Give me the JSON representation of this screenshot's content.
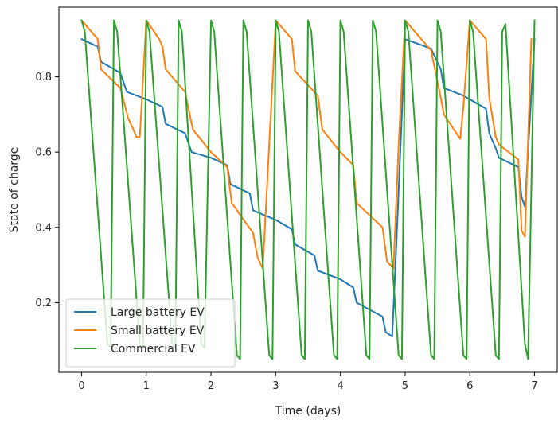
{
  "chart_data": {
    "type": "line",
    "title": "",
    "xlabel": "Time (days)",
    "ylabel": "State of charge",
    "xlim": [
      -0.35,
      7.35
    ],
    "ylim": [
      0.015,
      0.985
    ],
    "xticks": [
      0,
      1,
      2,
      3,
      4,
      5,
      6,
      7
    ],
    "xtick_labels": [
      "0",
      "1",
      "2",
      "3",
      "4",
      "5",
      "6",
      "7"
    ],
    "yticks": [
      0.2,
      0.4,
      0.6,
      0.8
    ],
    "ytick_labels": [
      "0.2",
      "0.4",
      "0.6",
      "0.8"
    ],
    "grid": false,
    "legend_position": "lower-left",
    "series": [
      {
        "name": "Large battery EV",
        "color": "#1f77b4",
        "x": [
          0,
          0.25,
          0.3,
          0.6,
          0.7,
          1.0,
          1.25,
          1.3,
          1.6,
          1.7,
          2.0,
          2.25,
          2.3,
          2.6,
          2.65,
          3.0,
          3.25,
          3.3,
          3.6,
          3.65,
          4.0,
          4.2,
          4.25,
          4.65,
          4.7,
          4.8,
          4.85,
          5.0,
          5.4,
          5.55,
          5.6,
          5.9,
          6.25,
          6.3,
          6.4,
          6.45,
          6.75,
          6.8,
          6.85,
          7.0
        ],
        "y": [
          0.9,
          0.88,
          0.84,
          0.81,
          0.76,
          0.74,
          0.72,
          0.675,
          0.65,
          0.6,
          0.585,
          0.565,
          0.515,
          0.49,
          0.445,
          0.42,
          0.395,
          0.355,
          0.325,
          0.285,
          0.262,
          0.24,
          0.2,
          0.163,
          0.122,
          0.11,
          0.3,
          0.9,
          0.875,
          0.82,
          0.77,
          0.75,
          0.715,
          0.65,
          0.61,
          0.585,
          0.56,
          0.48,
          0.455,
          0.9
        ]
      },
      {
        "name": "Small battery EV",
        "color": "#ff7f0e",
        "x": [
          0,
          0.25,
          0.3,
          0.6,
          0.72,
          0.8,
          0.85,
          0.9,
          1.0,
          1.2,
          1.25,
          1.3,
          1.6,
          1.72,
          2.0,
          2.25,
          2.32,
          2.65,
          2.72,
          2.8,
          2.9,
          3.0,
          3.25,
          3.3,
          3.65,
          3.72,
          4.0,
          4.2,
          4.25,
          4.65,
          4.72,
          4.82,
          4.9,
          5.0,
          5.4,
          5.55,
          5.6,
          5.85,
          5.9,
          6.0,
          6.25,
          6.3,
          6.4,
          6.45,
          6.75,
          6.8,
          6.85,
          6.95
        ],
        "y": [
          0.95,
          0.9,
          0.82,
          0.77,
          0.69,
          0.66,
          0.64,
          0.64,
          0.95,
          0.9,
          0.88,
          0.82,
          0.76,
          0.66,
          0.6,
          0.56,
          0.465,
          0.385,
          0.32,
          0.29,
          0.62,
          0.95,
          0.9,
          0.815,
          0.75,
          0.66,
          0.6,
          0.565,
          0.465,
          0.4,
          0.31,
          0.29,
          0.62,
          0.95,
          0.87,
          0.745,
          0.7,
          0.635,
          0.72,
          0.95,
          0.9,
          0.745,
          0.64,
          0.62,
          0.58,
          0.39,
          0.375,
          0.9
        ]
      },
      {
        "name": "Commercial EV",
        "color": "#2ca02c",
        "x": [
          0,
          0.05,
          0.4,
          0.45,
          0.5,
          0.55,
          0.9,
          0.95,
          1.0,
          1.05,
          1.4,
          1.45,
          1.5,
          1.55,
          1.85,
          1.9,
          2.0,
          2.05,
          2.4,
          2.45,
          2.5,
          2.55,
          2.9,
          2.95,
          3.0,
          3.05,
          3.4,
          3.45,
          3.5,
          3.55,
          3.9,
          3.95,
          4.0,
          4.05,
          4.4,
          4.45,
          4.5,
          4.55,
          4.9,
          4.95,
          5.0,
          5.05,
          5.4,
          5.45,
          5.5,
          5.55,
          5.9,
          5.95,
          6.0,
          6.05,
          6.4,
          6.45,
          6.5,
          6.55,
          6.85,
          6.9,
          7.0
        ],
        "y": [
          0.95,
          0.92,
          0.09,
          0.08,
          0.95,
          0.92,
          0.09,
          0.08,
          0.95,
          0.92,
          0.09,
          0.08,
          0.95,
          0.92,
          0.09,
          0.08,
          0.95,
          0.92,
          0.06,
          0.05,
          0.95,
          0.92,
          0.06,
          0.05,
          0.95,
          0.92,
          0.06,
          0.05,
          0.95,
          0.92,
          0.06,
          0.05,
          0.95,
          0.92,
          0.06,
          0.05,
          0.95,
          0.92,
          0.06,
          0.05,
          0.95,
          0.92,
          0.06,
          0.05,
          0.95,
          0.92,
          0.06,
          0.05,
          0.95,
          0.92,
          0.06,
          0.05,
          0.92,
          0.94,
          0.09,
          0.05,
          0.95
        ]
      }
    ]
  }
}
